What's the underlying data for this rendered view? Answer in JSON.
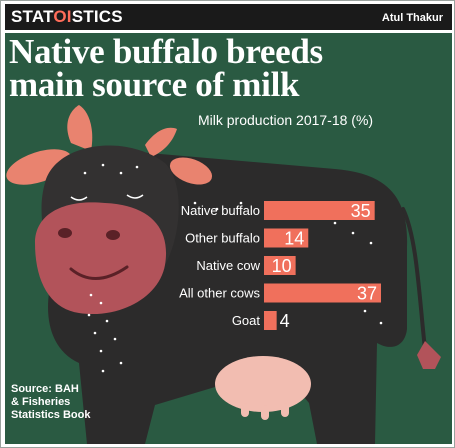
{
  "header": {
    "logo_prefix": "STAT",
    "logo_accent": "OI",
    "logo_suffix": "STICS",
    "author": "Atul Thakur"
  },
  "title_line1": "Native buffalo breeds",
  "title_line2": "main source of milk",
  "source_lines": [
    "Source: BAH",
    "& Fisheries",
    "Statistics Book"
  ],
  "colors": {
    "background": "#2a5a42",
    "bar": "#f0705c",
    "accent": "#ff6d5a",
    "cow_body": "#2c2b2b",
    "muzzle": "#b2535a"
  },
  "chart_data": {
    "type": "bar",
    "orientation": "horizontal",
    "title": "Milk production 2017-18 (%)",
    "categories": [
      "Native buffalo",
      "Other buffalo",
      "Native cow",
      "All other cows",
      "Goat"
    ],
    "values": [
      35,
      14,
      10,
      37,
      4
    ],
    "data_labels": [
      "35",
      "14",
      "10",
      "37",
      "4"
    ],
    "xlim": [
      0,
      40
    ],
    "grid": false,
    "legend": "none"
  }
}
